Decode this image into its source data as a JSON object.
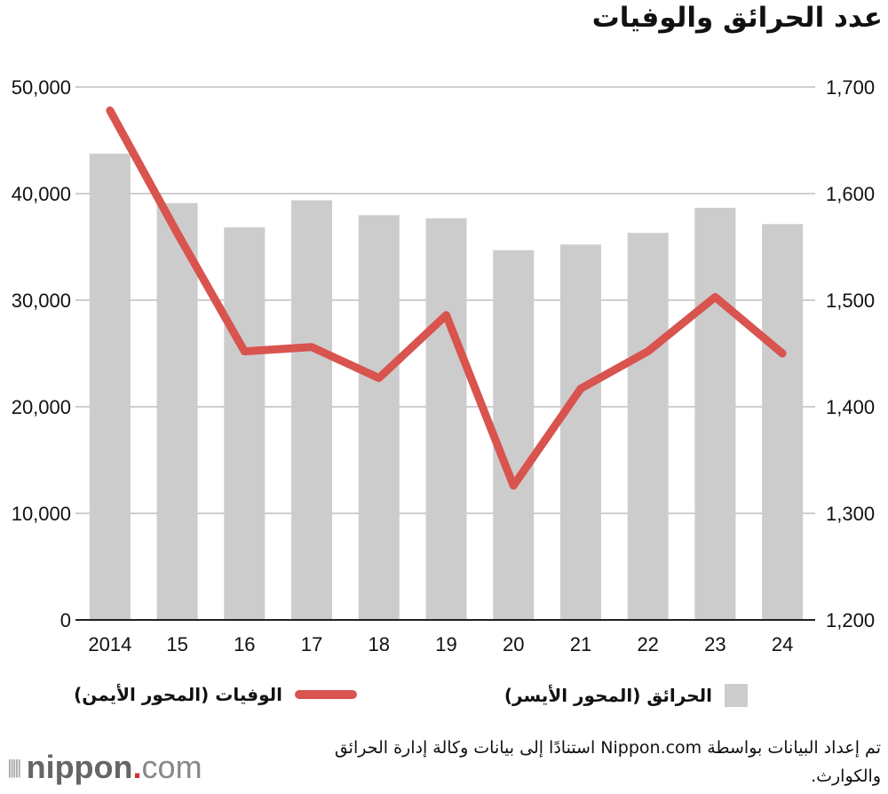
{
  "chart_data": {
    "type": "bar+line",
    "title": "عدد الحرائق والوفيات",
    "categories": [
      "2014",
      "15",
      "16",
      "17",
      "18",
      "19",
      "20",
      "21",
      "22",
      "23",
      "24"
    ],
    "series": [
      {
        "name": "الحرائق (المحور الأيسر)",
        "type": "bar",
        "axis": "left",
        "color": "#cccccc",
        "values": [
          43741,
          39111,
          36831,
          39373,
          37981,
          37683,
          34691,
          35222,
          36314,
          38672,
          37141
        ]
      },
      {
        "name": "الوفيات (المحور الأيمن)",
        "type": "line",
        "axis": "right",
        "color": "#d9534f",
        "values": [
          1678,
          1563,
          1452,
          1456,
          1427,
          1486,
          1326,
          1417,
          1452,
          1503,
          1450
        ]
      }
    ],
    "left_axis": {
      "range": [
        0,
        50000
      ],
      "ticks": [
        "0",
        "10,000",
        "20,000",
        "30,000",
        "40,000",
        "50,000"
      ]
    },
    "right_axis": {
      "range": [
        1200,
        1700
      ],
      "ticks": [
        "1,200",
        "1,300",
        "1,400",
        "1,500",
        "1,600",
        "1,700"
      ]
    },
    "grid": true,
    "legend_placement": "bottom"
  },
  "footnote": "تم إعداد البيانات بواسطة Nippon.com استنادًا إلى بيانات وكالة إدارة الحرائق والكوارث.",
  "logo": {
    "name": "nippon",
    "dot": ".",
    "tld": "com"
  }
}
